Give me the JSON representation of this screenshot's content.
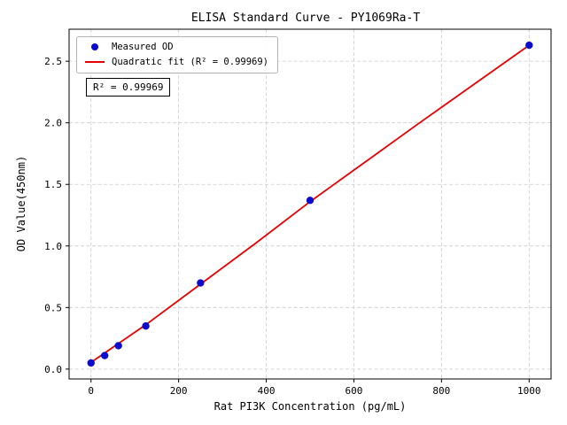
{
  "figure": {
    "background": "#ffffff"
  },
  "chart_data": {
    "type": "scatter",
    "title": "ELISA Standard Curve - PY1069Ra-T",
    "xlabel": "Rat PI3K Concentration (pg/mL)",
    "ylabel": "OD Value(450nm)",
    "xlim": [
      -50,
      1050
    ],
    "ylim": [
      -0.08,
      2.76
    ],
    "xticks": [
      0,
      200,
      400,
      600,
      800,
      1000
    ],
    "xtick_labels": [
      "0",
      "200",
      "400",
      "600",
      "800",
      "1000"
    ],
    "yticks": [
      0,
      0.5,
      1,
      1.5,
      2,
      2.5
    ],
    "ytick_labels": [
      "0.0",
      "0.5",
      "1.0",
      "1.5",
      "2.0",
      "2.5"
    ],
    "grid": true,
    "grid_color": "#cccccc",
    "legend_position": "upper left",
    "annotation": "R² = 0.99969",
    "series": [
      {
        "name": "Measured OD",
        "type": "scatter",
        "color": "#0b0bd0",
        "points": [
          [
            0,
            0.05
          ],
          [
            31.25,
            0.11
          ],
          [
            62.5,
            0.19
          ],
          [
            125,
            0.35
          ],
          [
            250,
            0.7
          ],
          [
            500,
            1.37
          ],
          [
            1000,
            2.63
          ]
        ]
      },
      {
        "name": "Quadratic fit (R² = 0.99969)",
        "type": "line",
        "color": "#e80000",
        "points": [
          [
            0,
            0.055
          ],
          [
            125,
            0.36
          ],
          [
            250,
            0.69
          ],
          [
            375,
            1.02
          ],
          [
            500,
            1.36
          ],
          [
            625,
            1.68
          ],
          [
            750,
            2.0
          ],
          [
            875,
            2.315
          ],
          [
            1000,
            2.63
          ]
        ]
      }
    ]
  }
}
